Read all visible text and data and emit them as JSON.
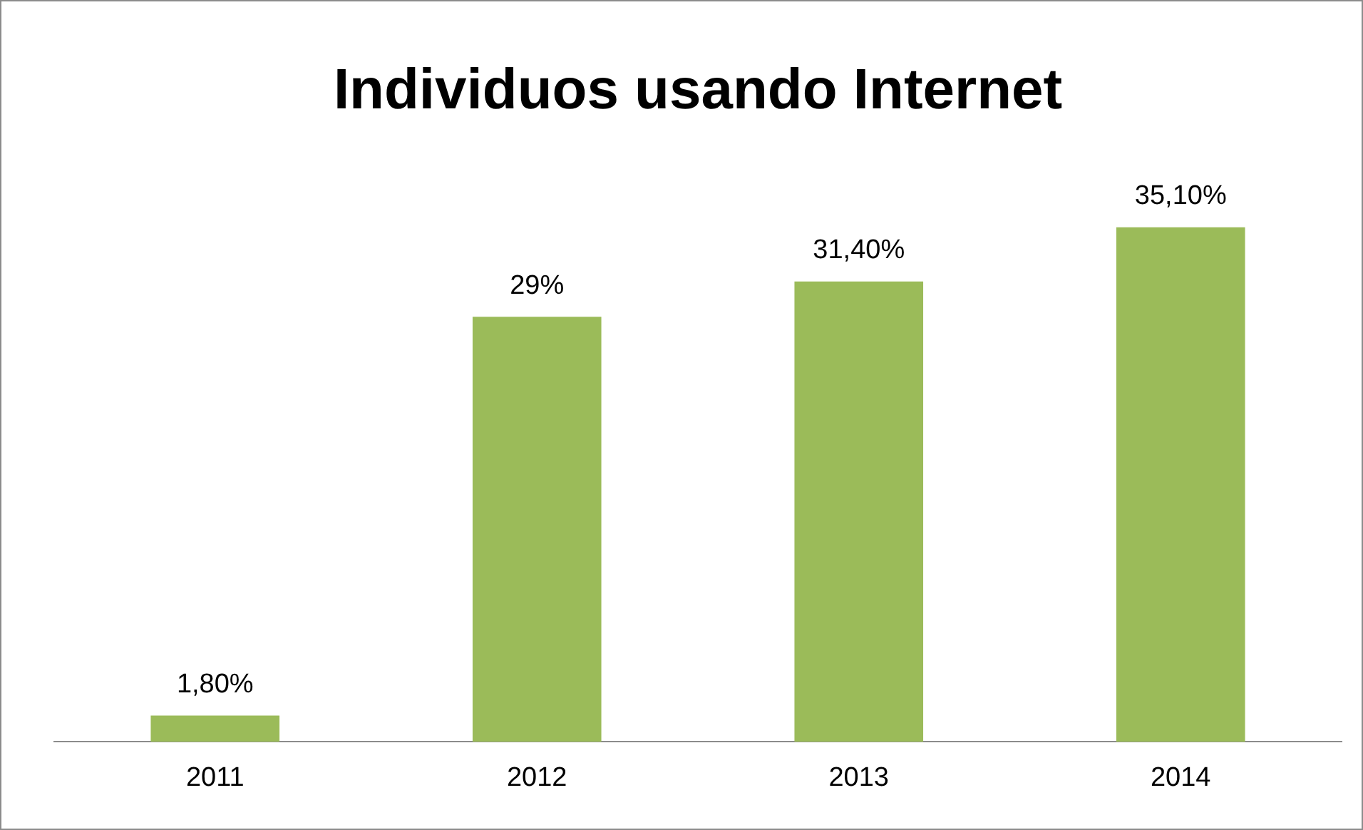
{
  "chart_data": {
    "type": "bar",
    "title": "Individuos usando Internet",
    "categories": [
      "2011",
      "2012",
      "2013",
      "2014"
    ],
    "values": [
      1.8,
      29,
      31.4,
      35.1
    ],
    "value_labels": [
      "1,80%",
      "29%",
      "31,40%",
      "35,10%"
    ],
    "color": "#9bbb59",
    "grid": false,
    "legend": false
  }
}
